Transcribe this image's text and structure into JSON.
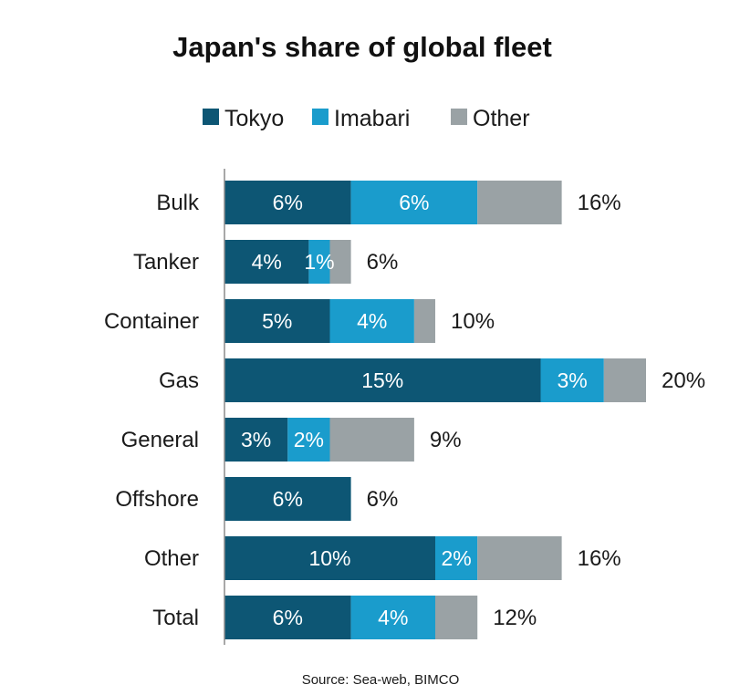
{
  "chart_data": {
    "type": "bar",
    "orientation": "horizontal",
    "stacked": true,
    "title": "Japan's share of global fleet",
    "source": "Source: Sea-web, BIMCO",
    "legend_position": "top",
    "grid": false,
    "categories": [
      "Bulk",
      "Tanker",
      "Container",
      "Gas",
      "General",
      "Offshore",
      "Other",
      "Total"
    ],
    "series": [
      {
        "name": "Tokyo",
        "color": "#0d5674",
        "values": [
          6,
          4,
          5,
          15,
          3,
          6,
          10,
          6
        ]
      },
      {
        "name": "Imabari",
        "color": "#1a9ccc",
        "values": [
          6,
          1,
          4,
          3,
          2,
          0,
          2,
          4
        ]
      },
      {
        "name": "Other",
        "color": "#9aa2a5",
        "values": [
          4,
          1,
          1,
          2,
          4,
          0,
          4,
          2
        ]
      }
    ],
    "segment_labels": [
      [
        "6%",
        "6%",
        ""
      ],
      [
        "4%",
        "1%",
        ""
      ],
      [
        "5%",
        "4%",
        ""
      ],
      [
        "15%",
        "3%",
        ""
      ],
      [
        "3%",
        "2%",
        ""
      ],
      [
        "6%",
        "",
        ""
      ],
      [
        "10%",
        "2%",
        ""
      ],
      [
        "6%",
        "4%",
        ""
      ]
    ],
    "totals": [
      16,
      6,
      10,
      20,
      9,
      6,
      16,
      12
    ],
    "total_labels": [
      "16%",
      "6%",
      "10%",
      "20%",
      "9%",
      "6%",
      "16%",
      "12%"
    ],
    "xlim": [
      0,
      20
    ]
  }
}
